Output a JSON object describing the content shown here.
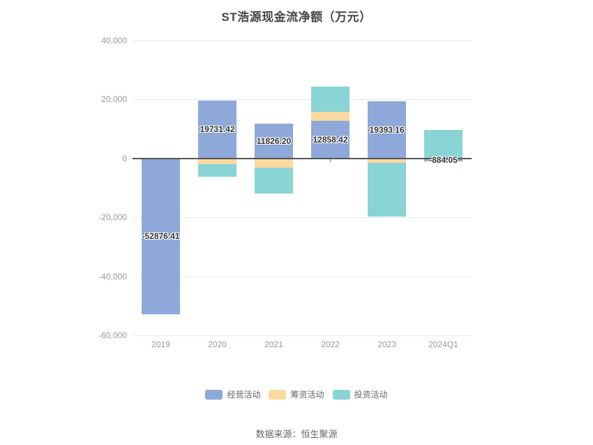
{
  "chart_data": {
    "type": "bar",
    "stacked": true,
    "title": "ST浩源现金流净额（万元）",
    "categories": [
      "2019",
      "2020",
      "2021",
      "2022",
      "2023",
      "2024Q1"
    ],
    "series": [
      {
        "name": "经营活动",
        "key": "operating",
        "color": "#8da8d9",
        "values": [
          -52876.41,
          19731.42,
          11826.2,
          12858.42,
          19393.16,
          -884.05
        ],
        "labels": [
          "-52876.41",
          "19731.42",
          "11826.20",
          "12858.42",
          "19393.16",
          "-884.05"
        ]
      },
      {
        "name": "筹资活动",
        "key": "financing",
        "color": "#fcd9a0",
        "values": [
          0,
          -2000,
          -3200,
          2900,
          -1500,
          0
        ]
      },
      {
        "name": "投资活动",
        "key": "investing",
        "color": "#89d4d4",
        "values": [
          0,
          -4300,
          -8700,
          8500,
          -18300,
          9700
        ]
      }
    ],
    "ylim": [
      -60000,
      40000
    ],
    "ytick_step": 20000,
    "yticks_labels": [
      "40,000",
      "20,000",
      "0",
      "-20,000",
      "-40,000",
      "-60,000"
    ],
    "xlabel": "",
    "ylabel": "",
    "grid": true,
    "legend_position": "bottom",
    "source_note": "数据来源：恒生聚源"
  },
  "colors": {
    "grid": "#e5eaf4",
    "zero_axis": "#555555",
    "axis_text": "#999999",
    "legend_text": "#666666",
    "title_text": "#464646",
    "bar_label_text": "#333333"
  }
}
